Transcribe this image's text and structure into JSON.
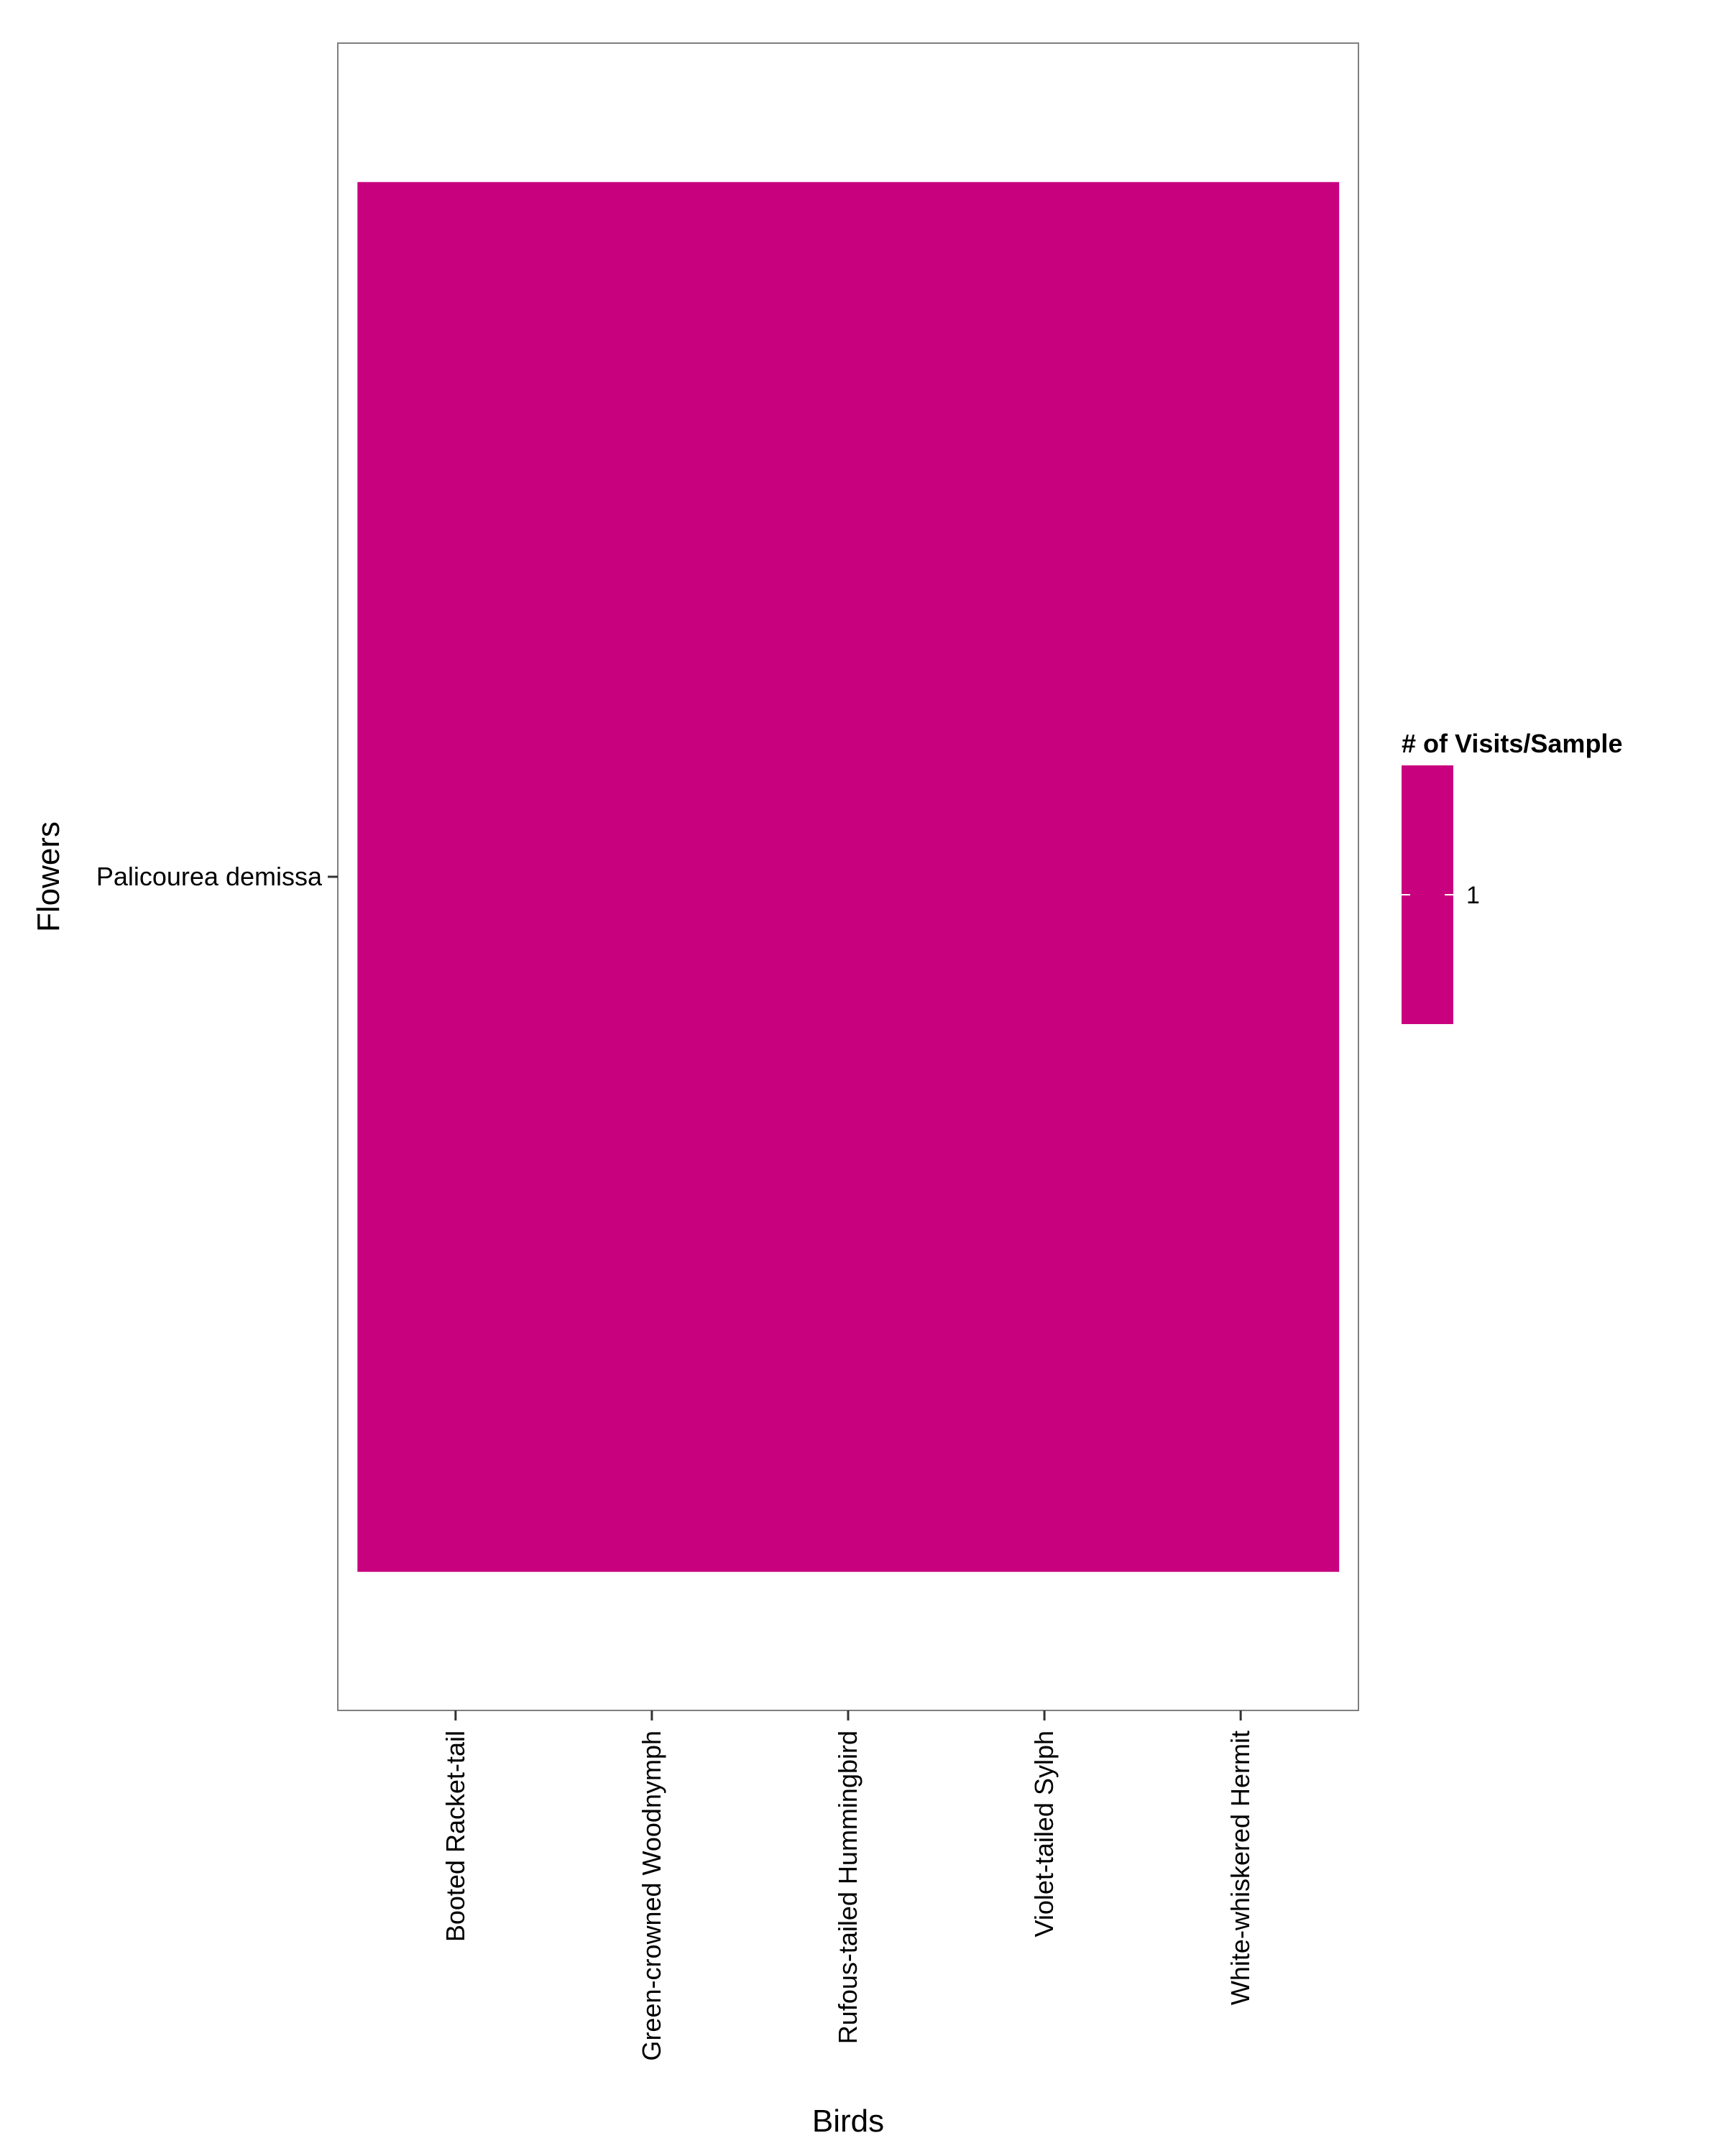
{
  "chart_data": {
    "type": "heatmap",
    "title": "",
    "xlabel": "Birds",
    "ylabel": "Flowers",
    "x_categories": [
      "Booted Racket-tail",
      "Green-crowned Woodnymph",
      "Rufous-tailed Hummingbird",
      "Violet-tailed Sylph",
      "White-whiskered Hermit"
    ],
    "y_categories": [
      "Palicourea demissa"
    ],
    "values": [
      [
        1,
        1,
        1,
        1,
        1
      ]
    ],
    "fill_color": "#C8017F",
    "legend": {
      "title": "# of Visits/Sample",
      "labels": [
        "1"
      ],
      "position": "right"
    },
    "grid": false
  }
}
